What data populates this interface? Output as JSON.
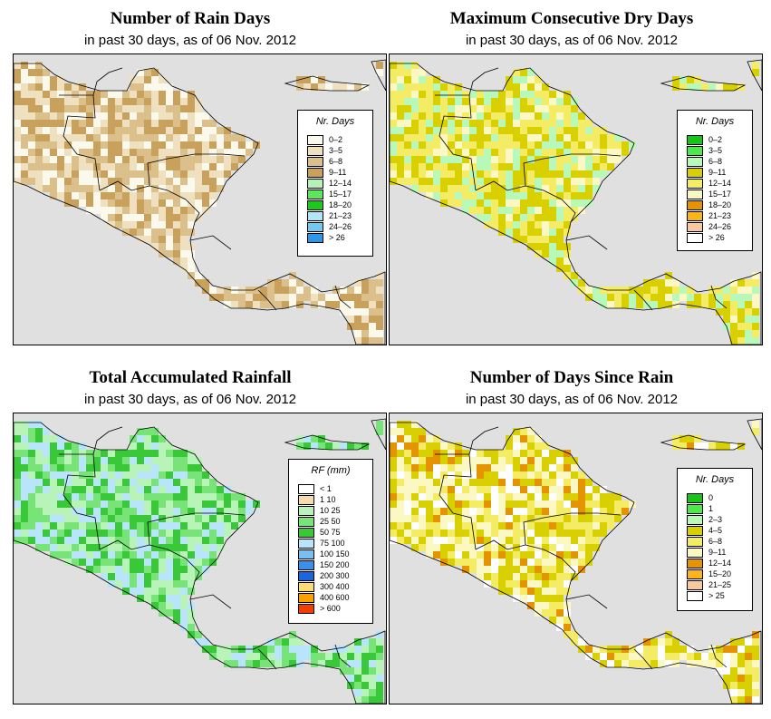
{
  "panels": [
    {
      "id": "rain-days",
      "title": "Number of Rain Days",
      "subtitle": "in past 30 days, as of  06 Nov. 2012",
      "legend_title": "Nr. Days",
      "legend": [
        {
          "label": "0–2",
          "color": "#fbf8ec"
        },
        {
          "label": "3–5",
          "color": "#efe1c0"
        },
        {
          "label": "6–8",
          "color": "#dcc08c"
        },
        {
          "label": "9–11",
          "color": "#c8a15c"
        },
        {
          "label": "12–14",
          "color": "#b6f2b6"
        },
        {
          "label": "15–17",
          "color": "#5ee65e"
        },
        {
          "label": "18–20",
          "color": "#1cc81c"
        },
        {
          "label": "21–23",
          "color": "#b4e4f8"
        },
        {
          "label": "24–26",
          "color": "#74c8f0"
        },
        {
          "label": "> 26",
          "color": "#2e96e6"
        }
      ]
    },
    {
      "id": "max-dry-days",
      "title": "Maximum Consecutive Dry Days",
      "subtitle": "in past 30 days, as of  06 Nov. 2012",
      "legend_title": "Nr. Days",
      "legend": [
        {
          "label": "0–2",
          "color": "#18c418"
        },
        {
          "label": "3–5",
          "color": "#4ce84c"
        },
        {
          "label": "6–8",
          "color": "#b8f8b8"
        },
        {
          "label": "9–11",
          "color": "#d8d000"
        },
        {
          "label": "12–14",
          "color": "#f4ec64"
        },
        {
          "label": "15–17",
          "color": "#fcf8c4"
        },
        {
          "label": "18–20",
          "color": "#e49400"
        },
        {
          "label": "21–23",
          "color": "#fcb41c"
        },
        {
          "label": "24–26",
          "color": "#f8c8a0"
        },
        {
          "label": "> 26",
          "color": "#ffffff"
        }
      ]
    },
    {
      "id": "total-rainfall",
      "title": "Total Accumulated Rainfall",
      "subtitle": "in past 30 days, as of  06 Nov. 2012",
      "legend_title": "RF (mm)",
      "legend": [
        {
          "label": "< 1",
          "color": "#ffffff"
        },
        {
          "label": "1   10",
          "color": "#f2dcb0"
        },
        {
          "label": "10   25",
          "color": "#b8f4b8"
        },
        {
          "label": "25   50",
          "color": "#78e478"
        },
        {
          "label": "50   75",
          "color": "#38c838"
        },
        {
          "label": "75   100",
          "color": "#b8e4fc"
        },
        {
          "label": "100   150",
          "color": "#78c0f4"
        },
        {
          "label": "150   200",
          "color": "#3c8ee8"
        },
        {
          "label": "200   300",
          "color": "#1e64dc"
        },
        {
          "label": "300   400",
          "color": "#fcdc74"
        },
        {
          "label": "400   600",
          "color": "#fca000"
        },
        {
          "label": "> 600",
          "color": "#f04000"
        }
      ]
    },
    {
      "id": "days-since-rain",
      "title": "Number of Days Since Rain",
      "subtitle": "in past 30 days, as of  06 Nov. 2012",
      "legend_title": "Nr. Days",
      "legend": [
        {
          "label": "0",
          "color": "#18c418"
        },
        {
          "label": "1",
          "color": "#4ce84c"
        },
        {
          "label": "2–3",
          "color": "#b8f8b8"
        },
        {
          "label": "4–5",
          "color": "#d8d000"
        },
        {
          "label": "6–8",
          "color": "#f4ec64"
        },
        {
          "label": "9–11",
          "color": "#fcf8c4"
        },
        {
          "label": "12–14",
          "color": "#e49400"
        },
        {
          "label": "15–20",
          "color": "#fcb41c"
        },
        {
          "label": "21–25",
          "color": "#f8c8a0"
        },
        {
          "label": "> 25",
          "color": "#ffffff"
        }
      ]
    }
  ],
  "colors": {
    "ocean": "#e0e0e0",
    "border": "#000000"
  }
}
